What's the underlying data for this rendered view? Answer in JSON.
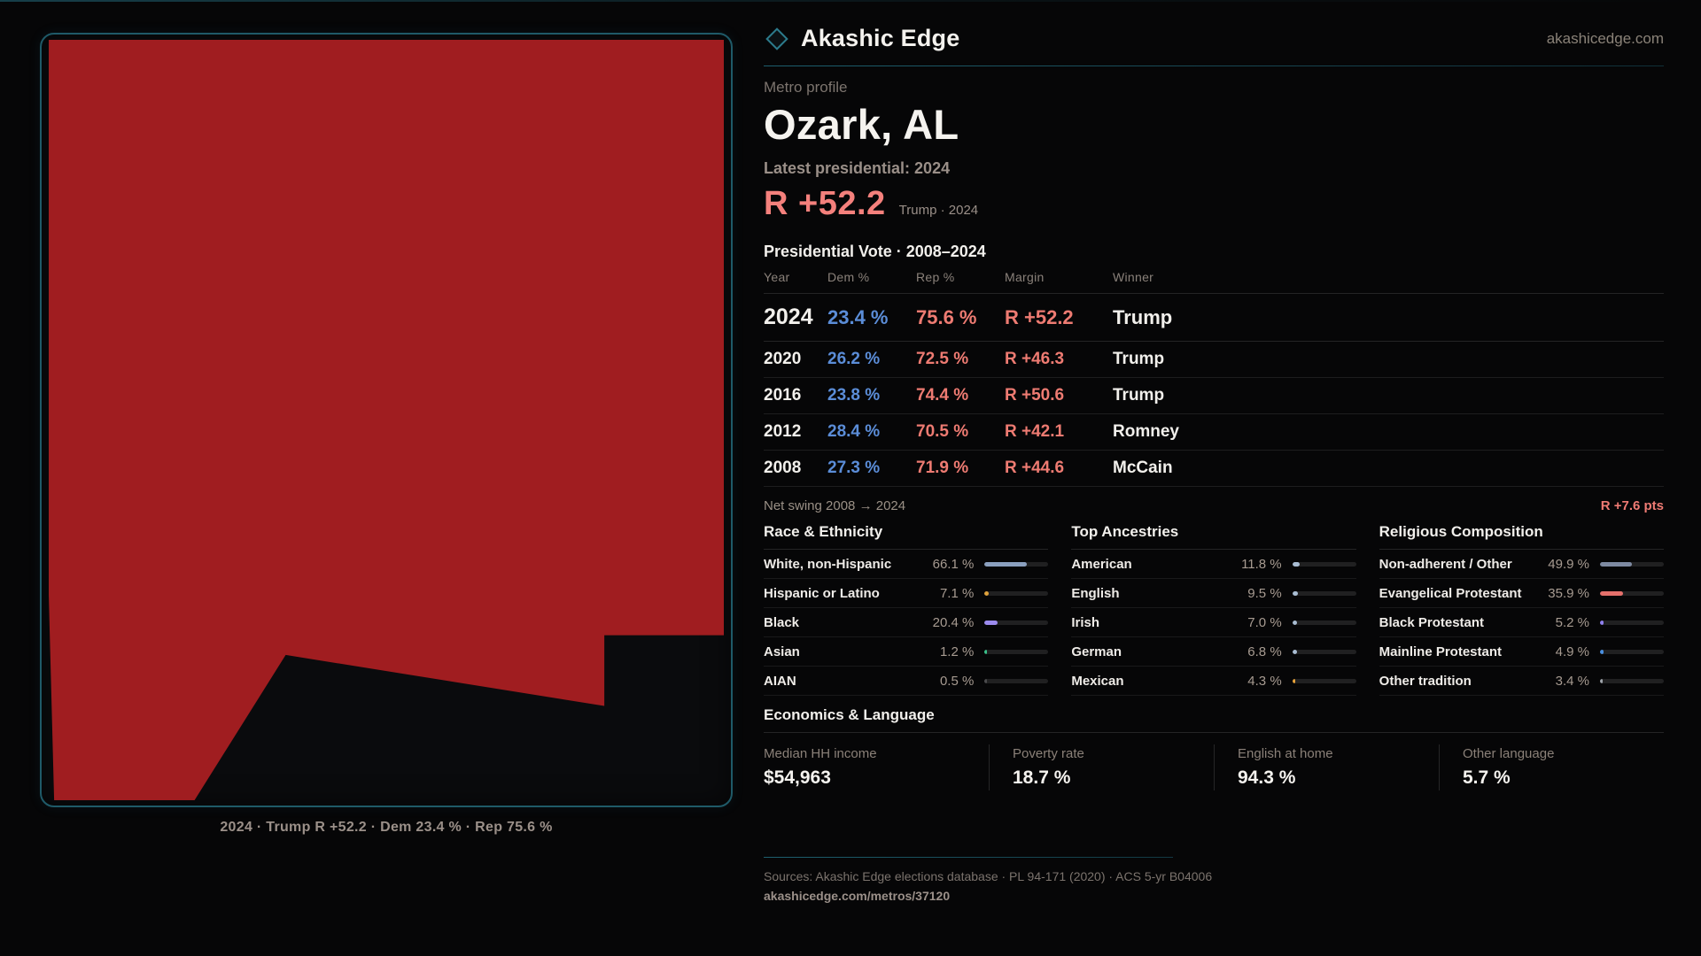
{
  "brand": {
    "name": "Akashic Edge",
    "domain": "akashicedge.com"
  },
  "profile": {
    "kicker": "Metro profile",
    "title": "Ozark, AL",
    "latest_label": "Latest presidential: 2024",
    "headline_margin": "R +52.2",
    "headline_caption": "Trump · 2024"
  },
  "map": {
    "caption": "2024 · Trump R +52.2 · Dem 23.4 % · Rep 75.6 %",
    "fill_color": "#a01d20"
  },
  "vote_table": {
    "title": "Presidential Vote · 2008–2024",
    "columns": [
      "Year",
      "Dem %",
      "Rep %",
      "Margin",
      "Winner"
    ],
    "rows": [
      {
        "year": "2024",
        "dem": "23.4 %",
        "rep": "75.6 %",
        "margin": "R +52.2",
        "winner": "Trump",
        "emphasis": true
      },
      {
        "year": "2020",
        "dem": "26.2 %",
        "rep": "72.5 %",
        "margin": "R +46.3",
        "winner": "Trump",
        "emphasis": false
      },
      {
        "year": "2016",
        "dem": "23.8 %",
        "rep": "74.4 %",
        "margin": "R +50.6",
        "winner": "Trump",
        "emphasis": false
      },
      {
        "year": "2012",
        "dem": "28.4 %",
        "rep": "70.5 %",
        "margin": "R +42.1",
        "winner": "Romney",
        "emphasis": false
      },
      {
        "year": "2008",
        "dem": "27.3 %",
        "rep": "71.9 %",
        "margin": "R +44.6",
        "winner": "McCain",
        "emphasis": false
      }
    ],
    "net_swing_label": "Net swing 2008 → 2024",
    "net_swing_value": "R +7.6 pts"
  },
  "demographics": [
    {
      "heading": "Race & Ethnicity",
      "rows": [
        {
          "label": "White, non-Hispanic",
          "value": "66.1 %",
          "pct": 66.1,
          "color": "#8ba0bf"
        },
        {
          "label": "Hispanic or Latino",
          "value": "7.1 %",
          "pct": 7.1,
          "color": "#dfa23c"
        },
        {
          "label": "Black",
          "value": "20.4 %",
          "pct": 20.4,
          "color": "#9c8bee"
        },
        {
          "label": "Asian",
          "value": "1.2 %",
          "pct": 1.2,
          "color": "#39c08a"
        },
        {
          "label": "AIAN",
          "value": "0.5 %",
          "pct": 0.5,
          "color": "#4a4a4c"
        }
      ]
    },
    {
      "heading": "Top Ancestries",
      "rows": [
        {
          "label": "American",
          "value": "11.8 %",
          "pct": 11.8,
          "color": "#a9bdd3"
        },
        {
          "label": "English",
          "value": "9.5 %",
          "pct": 9.5,
          "color": "#a9bdd3"
        },
        {
          "label": "Irish",
          "value": "7.0 %",
          "pct": 7.0,
          "color": "#a9bdd3"
        },
        {
          "label": "German",
          "value": "6.8 %",
          "pct": 6.8,
          "color": "#a9bdd3"
        },
        {
          "label": "Mexican",
          "value": "4.3 %",
          "pct": 4.3,
          "color": "#e8a33a"
        }
      ]
    },
    {
      "heading": "Religious Composition",
      "rows": [
        {
          "label": "Non-adherent / Other",
          "value": "49.9 %",
          "pct": 49.9,
          "color": "#7e8aa2"
        },
        {
          "label": "Evangelical Protestant",
          "value": "35.9 %",
          "pct": 35.9,
          "color": "#e5706b"
        },
        {
          "label": "Black Protestant",
          "value": "5.2 %",
          "pct": 5.2,
          "color": "#8f80ee"
        },
        {
          "label": "Mainline Protestant",
          "value": "4.9 %",
          "pct": 4.9,
          "color": "#4a8fe0"
        },
        {
          "label": "Other tradition",
          "value": "3.4 %",
          "pct": 3.4,
          "color": "#9fa4ab"
        }
      ]
    }
  ],
  "economics": {
    "heading": "Economics & Language",
    "stats": [
      {
        "label": "Median HH income",
        "value": "$54,963"
      },
      {
        "label": "Poverty rate",
        "value": "18.7 %"
      },
      {
        "label": "English at home",
        "value": "94.3 %"
      },
      {
        "label": "Other language",
        "value": "5.7 %"
      }
    ]
  },
  "footer": {
    "sources": "Sources: Akashic Edge elections database · PL 94-171 (2020) · ACS 5-yr B04006",
    "permalink": "akashicedge.com/metros/37120"
  }
}
